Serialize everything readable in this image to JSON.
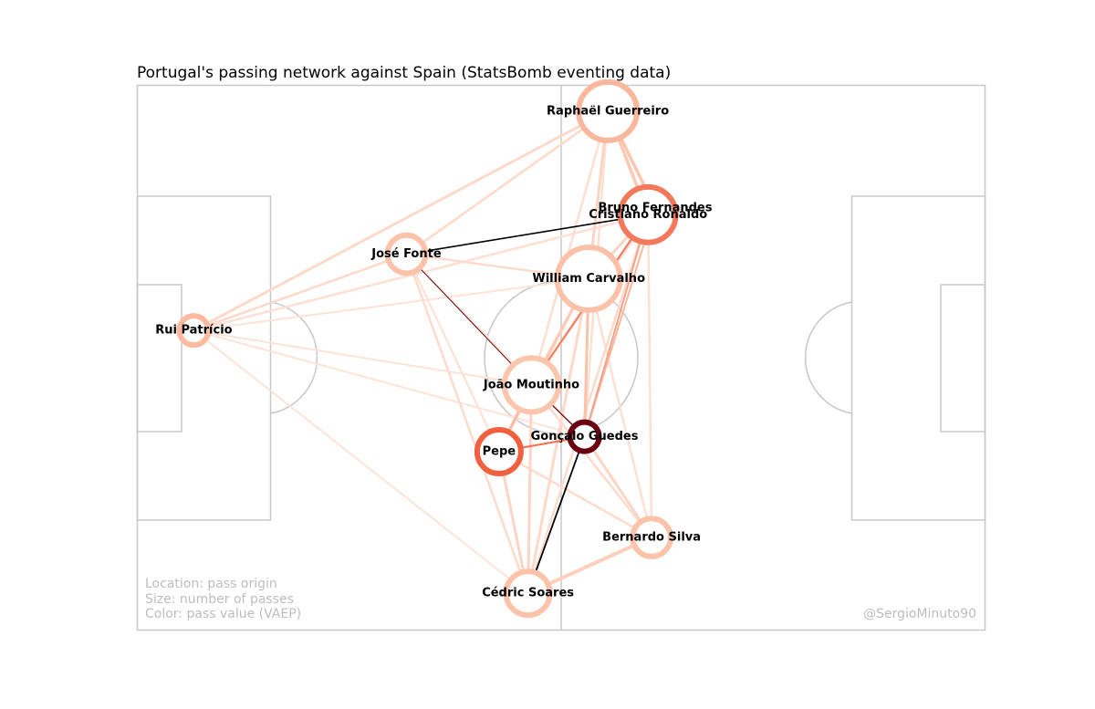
{
  "title": "Portugal's passing network against Spain (StatsBomb eventing data)",
  "legend": {
    "line1": "Location: pass origin",
    "line2": "Size: number of passes",
    "line3": "Color: pass value (VAEP)"
  },
  "credit": "@SergioMinuto90",
  "colors": {
    "pitch_lines": "#c8c8c8",
    "light": "#fcbba1",
    "medium": "#fb6a4a",
    "dark": "#67000d",
    "black": "#000000"
  },
  "chart_data": {
    "type": "network",
    "pitch": {
      "length": 120,
      "width": 80
    },
    "nodes": [
      {
        "name": "Raphaël Guerreiro",
        "x": 66.6,
        "y": 3.8,
        "size": 4.0,
        "color": "#f9b79c"
      },
      {
        "name": "Bruno Fernandes",
        "x": 73.3,
        "y": 18.0,
        "size": 2.2,
        "color": "#67000d"
      },
      {
        "name": "Cristiano Ronaldo",
        "x": 72.3,
        "y": 19.0,
        "size": 3.8,
        "color": "#f4785a"
      },
      {
        "name": "José Fonte",
        "x": 38.1,
        "y": 24.8,
        "size": 2.6,
        "color": "#fcc2aa"
      },
      {
        "name": "William Carvalho",
        "x": 63.9,
        "y": 28.4,
        "size": 4.3,
        "color": "#fcc1a8"
      },
      {
        "name": "Rui Patrício",
        "x": 8.0,
        "y": 36.0,
        "size": 2.0,
        "color": "#fcbba1"
      },
      {
        "name": "João Moutinho",
        "x": 55.8,
        "y": 44.0,
        "size": 3.7,
        "color": "#fcc6ae"
      },
      {
        "name": "Gonçalo Guedes",
        "x": 63.3,
        "y": 51.6,
        "size": 2.0,
        "color": "#6b0010"
      },
      {
        "name": "Pepe",
        "x": 51.2,
        "y": 53.8,
        "size": 3.0,
        "color": "#f1613f"
      },
      {
        "name": "Bernardo Silva",
        "x": 72.8,
        "y": 66.4,
        "size": 2.6,
        "color": "#fcc3ab"
      },
      {
        "name": "Cédric Soares",
        "x": 55.3,
        "y": 74.6,
        "size": 3.0,
        "color": "#fcc2aa"
      }
    ],
    "edges": [
      {
        "from": "José Fonte",
        "to": "Cristiano Ronaldo",
        "width": 1.6,
        "color": "#000000"
      },
      {
        "from": "José Fonte",
        "to": "João Moutinho",
        "width": 1.0,
        "color": "#67000d"
      },
      {
        "from": "Cédric Soares",
        "to": "Gonçalo Guedes",
        "width": 1.8,
        "color": "#000000"
      },
      {
        "from": "João Moutinho",
        "to": "Gonçalo Guedes",
        "width": 1.2,
        "color": "#67000d"
      },
      {
        "from": "Pepe",
        "to": "Gonçalo Guedes",
        "width": 2.0,
        "color": "#fb6a4a"
      },
      {
        "from": "João Moutinho",
        "to": "Cristiano Ronaldo",
        "width": 2.0,
        "color": "#f4785a"
      },
      {
        "from": "Gonçalo Guedes",
        "to": "Cristiano Ronaldo",
        "width": 2.0,
        "color": "#f7a184"
      },
      {
        "from": "Gonçalo Guedes",
        "to": "Bruno Fernandes",
        "width": 2.0,
        "color": "#f9b79c"
      },
      {
        "from": "Pepe",
        "to": "João Moutinho",
        "width": 3.0,
        "color": "#fcbba1"
      },
      {
        "from": "William Carvalho",
        "to": "Gonçalo Guedes",
        "width": 3.0,
        "color": "#fcc1a8"
      },
      {
        "from": "William Carvalho",
        "to": "João Moutinho",
        "width": 3.0,
        "color": "#fcc9b4"
      },
      {
        "from": "Raphaël Guerreiro",
        "to": "Cristiano Ronaldo",
        "width": 3.5,
        "color": "#fcc9b4"
      },
      {
        "from": "Raphaël Guerreiro",
        "to": "William Carvalho",
        "width": 3.0,
        "color": "#fdd4c2"
      },
      {
        "from": "Raphaël Guerreiro",
        "to": "Bruno Fernandes",
        "width": 3.5,
        "color": "#fcc5ae"
      },
      {
        "from": "Raphaël Guerreiro",
        "to": "Rui Patrício",
        "width": 3.0,
        "color": "#fdd9c9"
      },
      {
        "from": "Raphaël Guerreiro",
        "to": "José Fonte",
        "width": 2.5,
        "color": "#fdd9c9"
      },
      {
        "from": "Raphaël Guerreiro",
        "to": "João Moutinho",
        "width": 2.5,
        "color": "#fddfd1"
      },
      {
        "from": "Raphaël Guerreiro",
        "to": "Gonçalo Guedes",
        "width": 2.5,
        "color": "#fde0d3"
      },
      {
        "from": "Rui Patrício",
        "to": "José Fonte",
        "width": 2.5,
        "color": "#fdd9c9"
      },
      {
        "from": "Rui Patrício",
        "to": "Cristiano Ronaldo",
        "width": 2.5,
        "color": "#fde0d3"
      },
      {
        "from": "Rui Patrício",
        "to": "William Carvalho",
        "width": 2.0,
        "color": "#fde3d7"
      },
      {
        "from": "Rui Patrício",
        "to": "João Moutinho",
        "width": 2.0,
        "color": "#fde3d7"
      },
      {
        "from": "Rui Patrício",
        "to": "Gonçalo Guedes",
        "width": 2.0,
        "color": "#fde3d7"
      },
      {
        "from": "Rui Patrício",
        "to": "Cédric Soares",
        "width": 2.0,
        "color": "#fde3d7"
      },
      {
        "from": "José Fonte",
        "to": "William Carvalho",
        "width": 2.5,
        "color": "#fddbcb"
      },
      {
        "from": "José Fonte",
        "to": "Cédric Soares",
        "width": 2.5,
        "color": "#fddbcb"
      },
      {
        "from": "José Fonte",
        "to": "Pepe",
        "width": 2.0,
        "color": "#fde0d3"
      },
      {
        "from": "José Fonte",
        "to": "Gonçalo Guedes",
        "width": 2.0,
        "color": "#fde3d7"
      },
      {
        "from": "Pepe",
        "to": "Cédric Soares",
        "width": 3.0,
        "color": "#fdd5c4"
      },
      {
        "from": "Pepe",
        "to": "William Carvalho",
        "width": 2.5,
        "color": "#fdd9c9"
      },
      {
        "from": "Pepe",
        "to": "Bernardo Silva",
        "width": 2.5,
        "color": "#fddbcb"
      },
      {
        "from": "Cédric Soares",
        "to": "Bernardo Silva",
        "width": 4.0,
        "color": "#fdd0bd"
      },
      {
        "from": "Cédric Soares",
        "to": "João Moutinho",
        "width": 3.0,
        "color": "#fdd5c4"
      },
      {
        "from": "Cédric Soares",
        "to": "William Carvalho",
        "width": 3.0,
        "color": "#fdd9c9"
      },
      {
        "from": "Cédric Soares",
        "to": "Cristiano Ronaldo",
        "width": 2.5,
        "color": "#fddbcb"
      },
      {
        "from": "Bernardo Silva",
        "to": "Gonçalo Guedes",
        "width": 3.0,
        "color": "#fdd5c4"
      },
      {
        "from": "Bernardo Silva",
        "to": "João Moutinho",
        "width": 2.5,
        "color": "#fddbcb"
      },
      {
        "from": "Bernardo Silva",
        "to": "Cristiano Ronaldo",
        "width": 2.5,
        "color": "#fde0d3"
      },
      {
        "from": "Bernardo Silva",
        "to": "William Carvalho",
        "width": 2.5,
        "color": "#fde0d3"
      },
      {
        "from": "William Carvalho",
        "to": "Cristiano Ronaldo",
        "width": 3.0,
        "color": "#fdd5c4"
      },
      {
        "from": "William Carvalho",
        "to": "Bruno Fernandes",
        "width": 2.5,
        "color": "#fdd9c9"
      },
      {
        "from": "João Moutinho",
        "to": "Bruno Fernandes",
        "width": 2.5,
        "color": "#fdd9c9"
      }
    ]
  }
}
